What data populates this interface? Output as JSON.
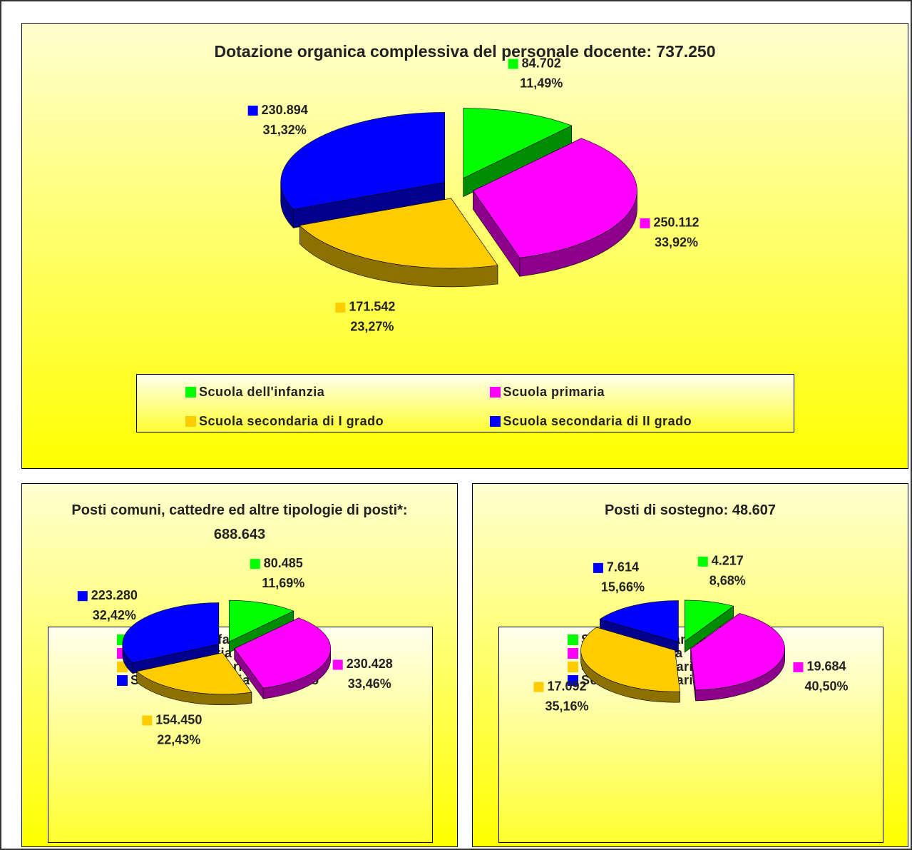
{
  "chart_data": [
    {
      "type": "pie",
      "title": "Dotazione organica complessiva del personale docente: 737.250",
      "categories": [
        "Scuola dell'infanzia",
        "Scuola primaria",
        "Scuola secondaria di I grado",
        "Scuola secondaria di II grado"
      ],
      "values": [
        84702,
        250112,
        171542,
        230894
      ],
      "value_labels": [
        "84.702",
        "250.112",
        "171.542",
        "230.894"
      ],
      "percent_labels": [
        "11,49%",
        "33,92%",
        "23,27%",
        "31,32%"
      ],
      "colors": [
        "#00ff00",
        "#ff00ff",
        "#ffcc00",
        "#0000ff"
      ],
      "legend": "bottom"
    },
    {
      "type": "pie",
      "title": "Posti comuni, cattedre ed altre tipologie di posti*: 688.643",
      "categories": [
        "Scuola dell'infanzia",
        "Scuola primaria",
        "Scuola secondaria di I grado",
        "Scuola secondaria di II grado"
      ],
      "values": [
        80485,
        230428,
        154450,
        223280
      ],
      "value_labels": [
        "80.485",
        "230.428",
        "154.450",
        "223.280"
      ],
      "percent_labels": [
        "11,69%",
        "33,46%",
        "22,43%",
        "32,42%"
      ],
      "colors": [
        "#00ff00",
        "#ff00ff",
        "#ffcc00",
        "#0000ff"
      ],
      "legend": "bottom"
    },
    {
      "type": "pie",
      "title": "Posti di sostegno: 48.607",
      "categories": [
        "Scuola dell'infanzia",
        "Scuola primaria",
        "Scuola secondaria di I grado",
        "Scuola secondaria di II grado"
      ],
      "values": [
        4217,
        19684,
        17092,
        7614
      ],
      "value_labels": [
        "4.217",
        "19.684",
        "17.092",
        "7.614"
      ],
      "percent_labels": [
        "8,68%",
        "40,50%",
        "35,16%",
        "15,66%"
      ],
      "colors": [
        "#00ff00",
        "#ff00ff",
        "#ffcc00",
        "#0000ff"
      ],
      "legend": "bottom"
    }
  ]
}
